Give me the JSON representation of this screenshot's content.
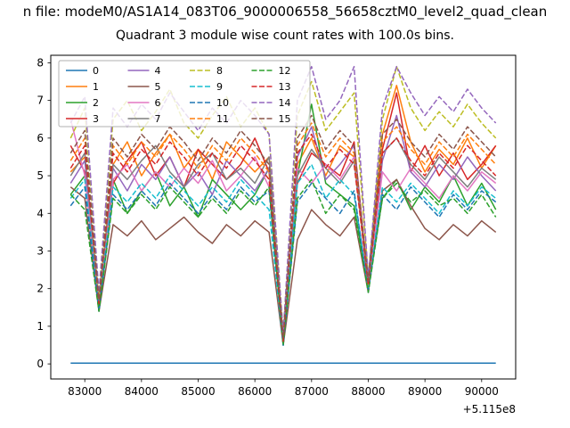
{
  "title_line1": "n file: modeM0/AS1A14_083T06_9000006558_56658cztM0_level2_quad_clean",
  "title_line2": "Quadrant 3 module wise count rates with 100.0s bins.",
  "chart_data": {
    "type": "line",
    "title": "Quadrant 3 module wise count rates with 100.0s bins.",
    "suptitle": "n file: modeM0/AS1A14_083T06_9000006558_56658cztM0_level2_quad_clean",
    "xlabel": "",
    "ylabel": "",
    "x_offset_label": "+5.115e8",
    "grid": false,
    "legend_position": "upper left",
    "legend_columns": 4,
    "xlim": [
      82400,
      90600
    ],
    "ylim": [
      -0.4,
      8.2
    ],
    "xticks": [
      83000,
      84000,
      85000,
      86000,
      87000,
      88000,
      89000,
      90000
    ],
    "yticks": [
      0,
      1,
      2,
      3,
      4,
      5,
      6,
      7,
      8
    ],
    "x": [
      82750,
      83000,
      83250,
      83500,
      83750,
      84000,
      84250,
      84500,
      84750,
      85000,
      85250,
      85500,
      85750,
      86000,
      86250,
      86500,
      86750,
      87000,
      87250,
      87500,
      87750,
      88000,
      88250,
      88500,
      88750,
      89000,
      89250,
      89500,
      89750,
      90000,
      90250
    ],
    "series": [
      {
        "name": "0",
        "color": "#1f77b4",
        "dash": false,
        "values": [
          0.02,
          0.02,
          0.02,
          0.02,
          0.02,
          0.02,
          0.02,
          0.02,
          0.02,
          0.02,
          0.02,
          0.02,
          0.02,
          0.02,
          0.02,
          0.02,
          0.02,
          0.02,
          0.02,
          0.02,
          0.02,
          0.02,
          0.02,
          0.02,
          0.02,
          0.02,
          0.02,
          0.02,
          0.02,
          0.02,
          0.02
        ]
      },
      {
        "name": "1",
        "color": "#ff7f0e",
        "dash": false,
        "values": [
          5.1,
          5.5,
          1.7,
          5.3,
          5.9,
          5.0,
          5.6,
          6.1,
          5.2,
          5.7,
          4.9,
          5.9,
          5.5,
          5.1,
          5.5,
          0.6,
          5.3,
          6.0,
          5.0,
          5.8,
          5.5,
          2.1,
          6.1,
          7.4,
          5.9,
          5.1,
          5.7,
          5.3,
          6.0,
          5.2,
          5.8
        ]
      },
      {
        "name": "2",
        "color": "#2ca02c",
        "dash": false,
        "values": [
          4.5,
          5.0,
          1.5,
          4.9,
          4.0,
          4.6,
          5.1,
          4.2,
          4.7,
          3.9,
          4.9,
          4.5,
          4.1,
          4.5,
          5.2,
          0.5,
          5.0,
          6.9,
          4.8,
          4.5,
          4.2,
          2.0,
          4.4,
          4.9,
          4.1,
          4.7,
          4.3,
          5.0,
          4.2,
          4.8,
          4.1
        ]
      },
      {
        "name": "3",
        "color": "#d62728",
        "dash": false,
        "values": [
          5.8,
          5.1,
          1.6,
          4.8,
          5.4,
          5.9,
          5.0,
          5.5,
          4.7,
          5.7,
          5.3,
          4.9,
          5.3,
          6.0,
          5.1,
          0.7,
          4.8,
          5.6,
          5.3,
          5.0,
          5.9,
          2.1,
          5.7,
          7.2,
          5.1,
          5.8,
          5.0,
          5.6,
          4.9,
          5.3,
          5.8
        ]
      },
      {
        "name": "4",
        "color": "#9467bd",
        "dash": false,
        "values": [
          4.8,
          5.4,
          1.5,
          5.2,
          4.6,
          5.3,
          4.9,
          5.5,
          4.7,
          5.1,
          4.5,
          5.4,
          5.0,
          4.6,
          5.2,
          0.6,
          5.5,
          6.3,
          4.9,
          5.3,
          5.8,
          2.0,
          5.4,
          6.6,
          5.1,
          4.7,
          5.3,
          4.9,
          5.5,
          5.0,
          4.6
        ]
      },
      {
        "name": "5",
        "color": "#8c564b",
        "dash": false,
        "values": [
          4.7,
          4.4,
          1.4,
          3.7,
          3.4,
          3.8,
          3.3,
          3.6,
          3.9,
          3.5,
          3.2,
          3.7,
          3.4,
          3.8,
          3.5,
          0.5,
          3.3,
          4.1,
          3.7,
          3.4,
          3.9,
          1.9,
          4.6,
          4.9,
          4.2,
          3.6,
          3.3,
          3.7,
          3.4,
          3.8,
          3.5
        ]
      },
      {
        "name": "6",
        "color": "#e377c2",
        "dash": false,
        "values": [
          6.5,
          5.0,
          1.6,
          4.9,
          5.3,
          4.6,
          5.1,
          4.7,
          5.2,
          4.8,
          5.4,
          4.6,
          5.0,
          5.5,
          4.7,
          0.6,
          5.2,
          4.8,
          5.3,
          4.9,
          5.5,
          2.0,
          5.1,
          4.6,
          5.2,
          4.8,
          4.4,
          5.0,
          4.6,
          5.1,
          4.8
        ]
      },
      {
        "name": "7",
        "color": "#7f7f7f",
        "dash": false,
        "values": [
          5.0,
          5.6,
          1.6,
          5.3,
          4.9,
          5.4,
          5.8,
          5.1,
          4.7,
          5.3,
          5.6,
          4.9,
          5.2,
          4.8,
          5.5,
          0.6,
          5.0,
          5.7,
          5.2,
          4.8,
          5.4,
          2.1,
          5.6,
          6.0,
          5.3,
          4.9,
          5.5,
          5.1,
          4.7,
          5.2,
          4.9
        ]
      },
      {
        "name": "8",
        "color": "#bcbd22",
        "dash": true,
        "values": [
          6.0,
          6.8,
          1.8,
          6.5,
          7.0,
          6.2,
          6.7,
          7.3,
          6.4,
          6.0,
          6.6,
          7.1,
          6.3,
          6.8,
          6.1,
          0.8,
          6.6,
          7.5,
          6.2,
          6.7,
          7.2,
          2.3,
          6.5,
          7.9,
          6.8,
          6.2,
          6.7,
          6.3,
          6.9,
          6.4,
          6.0
        ]
      },
      {
        "name": "9",
        "color": "#17becf",
        "dash": true,
        "values": [
          4.4,
          4.9,
          1.5,
          4.7,
          4.3,
          4.8,
          4.4,
          5.0,
          4.6,
          4.2,
          4.7,
          4.3,
          4.9,
          4.5,
          4.1,
          0.5,
          4.8,
          5.3,
          4.4,
          4.9,
          4.5,
          2.0,
          4.7,
          4.3,
          4.8,
          4.4,
          4.0,
          4.6,
          4.2,
          4.7,
          4.4
        ]
      },
      {
        "name": "10",
        "color": "#1f77b4",
        "dash": true,
        "values": [
          4.2,
          4.7,
          1.4,
          4.5,
          4.1,
          4.6,
          4.2,
          4.8,
          4.4,
          4.0,
          4.5,
          4.1,
          4.7,
          4.3,
          4.6,
          0.5,
          4.3,
          4.8,
          4.4,
          4.0,
          4.6,
          1.9,
          4.5,
          4.1,
          4.7,
          4.3,
          3.9,
          4.5,
          4.1,
          4.6,
          4.3
        ]
      },
      {
        "name": "11",
        "color": "#ff7f0e",
        "dash": true,
        "values": [
          5.4,
          6.0,
          1.7,
          5.8,
          5.3,
          5.9,
          5.5,
          6.1,
          5.7,
          5.2,
          5.8,
          5.4,
          6.0,
          5.6,
          5.1,
          0.7,
          5.8,
          6.4,
          5.5,
          6.0,
          5.6,
          2.1,
          5.9,
          6.3,
          5.7,
          5.3,
          5.9,
          5.5,
          6.1,
          5.7,
          5.3
        ]
      },
      {
        "name": "12",
        "color": "#2ca02c",
        "dash": true,
        "values": [
          4.5,
          4.1,
          1.4,
          4.4,
          4.0,
          4.5,
          4.1,
          4.7,
          4.3,
          3.9,
          4.4,
          4.0,
          4.6,
          4.2,
          4.7,
          0.5,
          4.4,
          4.9,
          4.0,
          4.5,
          4.1,
          1.9,
          4.4,
          4.8,
          4.3,
          4.6,
          4.2,
          4.4,
          4.0,
          4.5,
          3.9
        ]
      },
      {
        "name": "13",
        "color": "#d62728",
        "dash": true,
        "values": [
          5.2,
          5.8,
          1.6,
          5.6,
          5.1,
          5.7,
          5.3,
          5.9,
          5.5,
          5.0,
          5.6,
          5.2,
          5.8,
          5.4,
          4.9,
          0.6,
          5.6,
          6.1,
          5.2,
          5.7,
          5.3,
          2.1,
          5.6,
          6.0,
          5.4,
          5.0,
          5.6,
          5.2,
          5.8,
          5.4,
          5.0
        ]
      },
      {
        "name": "14",
        "color": "#9467bd",
        "dash": true,
        "values": [
          6.4,
          7.1,
          1.9,
          6.8,
          6.3,
          6.9,
          6.5,
          7.2,
          6.7,
          6.2,
          6.8,
          6.4,
          7.0,
          6.6,
          6.1,
          0.8,
          7.0,
          7.9,
          6.5,
          7.0,
          7.9,
          2.3,
          6.8,
          7.9,
          7.2,
          6.6,
          7.1,
          6.7,
          7.3,
          6.8,
          6.4
        ]
      },
      {
        "name": "15",
        "color": "#8c564b",
        "dash": true,
        "values": [
          5.6,
          6.2,
          1.7,
          6.0,
          5.5,
          6.1,
          5.7,
          6.3,
          5.9,
          5.4,
          6.0,
          5.6,
          6.2,
          5.8,
          5.3,
          0.7,
          6.0,
          6.6,
          5.7,
          6.2,
          5.8,
          2.2,
          6.1,
          6.5,
          5.9,
          5.5,
          6.1,
          5.7,
          6.3,
          5.9,
          5.5
        ]
      }
    ]
  }
}
